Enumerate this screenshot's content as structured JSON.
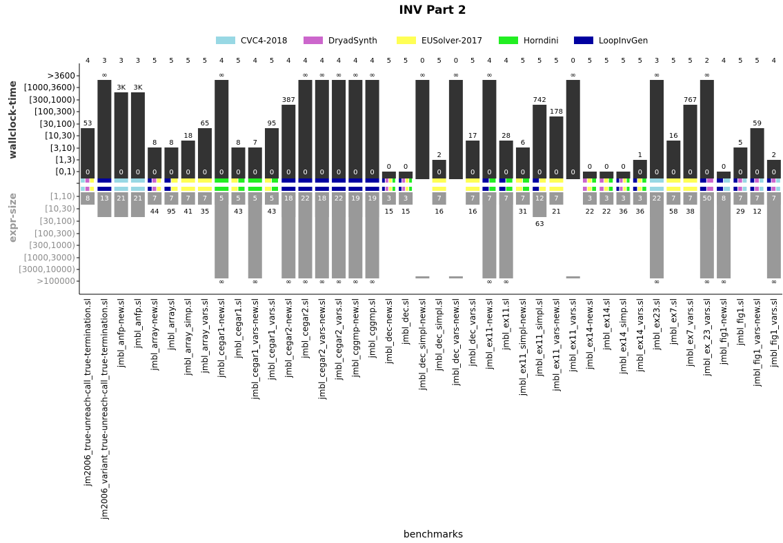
{
  "chart_data": {
    "type": "bar",
    "title": "INV Part 2",
    "xlabel": "benchmarks",
    "ylabel_top": "wallclock-time",
    "ylabel_bottom": "expr-size",
    "top_ticks": [
      ">3600",
      "[1000,3600)",
      "[300,1000)",
      "[100,300)",
      "[30,100)",
      "[10,30)",
      "[3,10)",
      "[1,3)",
      "[0,1)"
    ],
    "bottom_ticks": [
      "[1,10)",
      "[10,30)",
      "[30,100)",
      "[100,300)",
      "[300,1000)",
      "[1000,3000)",
      "[3000,10000)",
      ">100000"
    ],
    "legend": [
      {
        "name": "CVC4-2018",
        "color": "#98d8e4"
      },
      {
        "name": "DryadSynth",
        "color": "#cc66cc"
      },
      {
        "name": "EUSolver-2017",
        "color": "#ffff55"
      },
      {
        "name": "Horndini",
        "color": "#22ee22"
      },
      {
        "name": "LoopInvGen",
        "color": "#0000a0"
      }
    ],
    "benchmarks": [
      {
        "name": "jm2006_true-unreach-call_true-termination.sl",
        "solved": "4",
        "time": "53",
        "time_level": 4,
        "min_time": "0",
        "size": "8",
        "size_level": 0,
        "sm": "CDE"
      },
      {
        "name": "jm2006_variant_true-unreach-call_true-termination.sl",
        "solved": "3",
        "time": "∞",
        "time_level": 8,
        "min_time": "",
        "size": "13",
        "size_level": 1,
        "sm": "L"
      },
      {
        "name": "jmbl_anfp-new.sl",
        "solved": "3",
        "time": "3K",
        "time_level": 7,
        "min_time": "0",
        "size": "21",
        "size_level": 1,
        "sm": "C"
      },
      {
        "name": "jmbl_anfp.sl",
        "solved": "3",
        "time": "3K",
        "time_level": 7,
        "min_time": "0",
        "size": "21",
        "size_level": 1,
        "sm": "C"
      },
      {
        "name": "jmbl_array-new.sl",
        "solved": "5",
        "time": "8",
        "time_level": 2,
        "min_time": "0",
        "size": "7",
        "size_level": 0,
        "sm": "LDE",
        "bsize": "44"
      },
      {
        "name": "jmbl_array.sl",
        "solved": "5",
        "time": "8",
        "time_level": 2,
        "min_time": "0",
        "size": "7",
        "size_level": 0,
        "sm": "LE",
        "bsize": "95"
      },
      {
        "name": "jmbl_array_simp.sl",
        "solved": "5",
        "time": "18",
        "time_level": 3,
        "min_time": "0",
        "size": "7",
        "size_level": 0,
        "sm": "E",
        "bsize": "41"
      },
      {
        "name": "jmbl_array_vars.sl",
        "solved": "5",
        "time": "65",
        "time_level": 4,
        "min_time": "0",
        "size": "7",
        "size_level": 0,
        "sm": "E",
        "bsize": "35"
      },
      {
        "name": "jmbl_cegar1-new.sl",
        "solved": "4",
        "time": "∞",
        "time_level": 8,
        "min_time": "0",
        "size": "5",
        "size_level": 0,
        "sm": "H",
        "bsize": "∞"
      },
      {
        "name": "jmbl_cegar1.sl",
        "solved": "5",
        "time": "8",
        "time_level": 2,
        "min_time": "0",
        "size": "5",
        "size_level": 0,
        "sm": "EH",
        "bsize": "43"
      },
      {
        "name": "jmbl_cegar1_vars-new.sl",
        "solved": "4",
        "time": "7",
        "time_level": 2,
        "min_time": "0",
        "size": "5",
        "size_level": 0,
        "sm": "H",
        "bsize": "∞"
      },
      {
        "name": "jmbl_cegar1_vars.sl",
        "solved": "5",
        "time": "95",
        "time_level": 4,
        "min_time": "0",
        "size": "5",
        "size_level": 0,
        "sm": "EH",
        "bsize": "43"
      },
      {
        "name": "jmbl_cegar2-new.sl",
        "solved": "4",
        "time": "387",
        "time_level": 6,
        "min_time": "0",
        "size": "18",
        "size_level": 1,
        "sm": "L",
        "bsize": "∞"
      },
      {
        "name": "jmbl_cegar2.sl",
        "solved": "4",
        "time": "∞",
        "time_level": 8,
        "min_time": "0",
        "size": "22",
        "size_level": 1,
        "sm": "L",
        "bsize": "∞"
      },
      {
        "name": "jmbl_cegar2_vars-new.sl",
        "solved": "4",
        "time": "∞",
        "time_level": 8,
        "min_time": "0",
        "size": "18",
        "size_level": 1,
        "sm": "L",
        "bsize": "∞"
      },
      {
        "name": "jmbl_cegar2_vars.sl",
        "solved": "4",
        "time": "∞",
        "time_level": 8,
        "min_time": "0",
        "size": "22",
        "size_level": 1,
        "sm": "L",
        "bsize": "∞"
      },
      {
        "name": "jmbl_cggmp-new.sl",
        "solved": "4",
        "time": "∞",
        "time_level": 8,
        "min_time": "0",
        "size": "19",
        "size_level": 1,
        "sm": "L",
        "bsize": "∞"
      },
      {
        "name": "jmbl_cggmp.sl",
        "solved": "4",
        "time": "∞",
        "time_level": 8,
        "min_time": "0",
        "size": "19",
        "size_level": 1,
        "sm": "L",
        "bsize": "∞"
      },
      {
        "name": "jmbl_dec-new.sl",
        "solved": "5",
        "time": "0",
        "time_level": 0,
        "min_time": "",
        "size": "3",
        "size_level": 0,
        "sm": "LDEH",
        "bsize": "15"
      },
      {
        "name": "jmbl_dec.sl",
        "solved": "5",
        "time": "0",
        "time_level": 0,
        "min_time": "",
        "size": "3",
        "size_level": 0,
        "sm": "LDEH",
        "bsize": "15"
      },
      {
        "name": "jmbl_dec_simpl-new.sl",
        "solved": "0",
        "time": "∞",
        "time_level": 8,
        "min_time": "",
        "size": "",
        "size_level": 7,
        "sm": ""
      },
      {
        "name": "jmbl_dec_simpl.sl",
        "solved": "5",
        "time": "2",
        "time_level": 1,
        "min_time": "0",
        "size": "7",
        "size_level": 0,
        "sm": "E",
        "bsize": "16"
      },
      {
        "name": "jmbl_dec_vars-new.sl",
        "solved": "0",
        "time": "∞",
        "time_level": 8,
        "min_time": "",
        "size": "",
        "size_level": 7,
        "sm": ""
      },
      {
        "name": "jmbl_dec_vars.sl",
        "solved": "5",
        "time": "17",
        "time_level": 3,
        "min_time": "0",
        "size": "7",
        "size_level": 0,
        "sm": "E",
        "bsize": "16"
      },
      {
        "name": "jmbl_ex11-new.sl",
        "solved": "4",
        "time": "∞",
        "time_level": 8,
        "min_time": "0",
        "size": "7",
        "size_level": 0,
        "sm": "LH",
        "bsize": "∞"
      },
      {
        "name": "jmbl_ex11.sl",
        "solved": "4",
        "time": "28",
        "time_level": 3,
        "min_time": "0",
        "size": "7",
        "size_level": 0,
        "sm": "LH",
        "bsize": "∞"
      },
      {
        "name": "jmbl_ex11_simpl-new.sl",
        "solved": "5",
        "time": "6",
        "time_level": 2,
        "min_time": "0",
        "size": "7",
        "size_level": 0,
        "sm": "EH",
        "bsize": "31"
      },
      {
        "name": "jmbl_ex11_simpl.sl",
        "solved": "5",
        "time": "742",
        "time_level": 6,
        "min_time": "0",
        "size": "12",
        "size_level": 1,
        "sm": "LE",
        "bsize": "63"
      },
      {
        "name": "jmbl_ex11_vars-new.sl",
        "solved": "5",
        "time": "178",
        "time_level": 5,
        "min_time": "0",
        "size": "7",
        "size_level": 0,
        "sm": "E",
        "bsize": "21"
      },
      {
        "name": "jmbl_ex11_vars.sl",
        "solved": "0",
        "time": "∞",
        "time_level": 8,
        "min_time": "0",
        "size": "",
        "size_level": 7,
        "sm": ""
      },
      {
        "name": "jmbl_ex14-new.sl",
        "solved": "5",
        "time": "0",
        "time_level": 0,
        "min_time": "",
        "size": "3",
        "size_level": 0,
        "sm": "DEH",
        "bsize": "22"
      },
      {
        "name": "jmbl_ex14.sl",
        "solved": "5",
        "time": "0",
        "time_level": 0,
        "min_time": "",
        "size": "3",
        "size_level": 0,
        "sm": "DEH",
        "bsize": "22"
      },
      {
        "name": "jmbl_ex14_simp.sl",
        "solved": "5",
        "time": "0",
        "time_level": 0,
        "min_time": "",
        "size": "3",
        "size_level": 0,
        "sm": "LDEH",
        "bsize": "36"
      },
      {
        "name": "jmbl_ex14_vars.sl",
        "solved": "5",
        "time": "1",
        "time_level": 1,
        "min_time": "0",
        "size": "3",
        "size_level": 0,
        "sm": "LEH",
        "bsize": "36"
      },
      {
        "name": "jmbl_ex23.sl",
        "solved": "3",
        "time": "∞",
        "time_level": 8,
        "min_time": "0",
        "size": "22",
        "size_level": 1,
        "sm": "C",
        "bsize": "∞"
      },
      {
        "name": "jmbl_ex7.sl",
        "solved": "5",
        "time": "16",
        "time_level": 3,
        "min_time": "0",
        "size": "7",
        "size_level": 0,
        "sm": "E",
        "bsize": "58"
      },
      {
        "name": "jmbl_ex7_vars.sl",
        "solved": "5",
        "time": "767",
        "time_level": 6,
        "min_time": "0",
        "size": "7",
        "size_level": 0,
        "sm": "E",
        "bsize": "38"
      },
      {
        "name": "jmbl_ex_23_vars.sl",
        "solved": "2",
        "time": "∞",
        "time_level": 8,
        "min_time": "0",
        "size": "50",
        "size_level": 2,
        "sm": "LD",
        "bsize": "∞"
      },
      {
        "name": "jmbl_fig1-new.sl",
        "solved": "4",
        "time": "0",
        "time_level": 0,
        "min_time": "",
        "size": "8",
        "size_level": 0,
        "sm": "LC",
        "bsize": "∞"
      },
      {
        "name": "jmbl_fig1.sl",
        "solved": "5",
        "time": "5",
        "time_level": 2,
        "min_time": "0",
        "size": "7",
        "size_level": 0,
        "sm": "LDC",
        "bsize": "29"
      },
      {
        "name": "jmbl_fig1_vars-new.sl",
        "solved": "5",
        "time": "59",
        "time_level": 4,
        "min_time": "0",
        "size": "7",
        "size_level": 0,
        "sm": "LDC",
        "bsize": "12"
      },
      {
        "name": "jmbl_fig1_vars.sl",
        "solved": "4",
        "time": "2",
        "time_level": 1,
        "min_time": "0",
        "size": "7",
        "size_level": 0,
        "sm": "LDC",
        "bsize": "∞"
      }
    ]
  }
}
